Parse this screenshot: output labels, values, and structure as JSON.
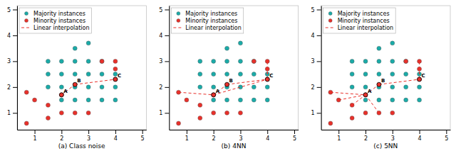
{
  "chart_data": [
    {
      "type": "scatter",
      "x_label": "(a) Class noise",
      "xlim": [
        0.35,
        5.15
      ],
      "ylim": [
        0.35,
        5.15
      ],
      "xticks": [
        1,
        2,
        3,
        4,
        5
      ],
      "yticks": [
        1,
        2,
        3,
        4,
        5
      ],
      "grid": false,
      "legend": "upper left",
      "series": [
        {
          "name": "Majority instances",
          "type": "scatter",
          "marker": "circle",
          "color": "#1aaba8",
          "x": [
            1.5,
            1.5,
            2.0,
            2.0,
            2.0,
            2.5,
            2.5,
            2.5,
            2.5,
            3.0,
            3.0,
            3.0,
            3.0,
            3.5,
            3.5,
            3.5,
            3.5,
            4.0,
            4.0,
            4.0,
            1.5,
            2.0,
            2.5,
            3.0
          ],
          "values": [
            2.5,
            3.0,
            3.0,
            2.5,
            2.0,
            3.5,
            3.0,
            2.5,
            2.0,
            3.7,
            3.0,
            2.5,
            2.0,
            3.0,
            2.5,
            2.0,
            1.5,
            2.5,
            2.0,
            1.5,
            2.0,
            1.5,
            1.5,
            1.5
          ]
        },
        {
          "name": "Minority instances",
          "type": "scatter",
          "marker": "circle",
          "color": "#e8302a",
          "x": [
            0.7,
            0.7,
            1.0,
            1.5,
            1.5,
            2.0,
            2.0,
            2.5,
            3.0,
            3.5,
            4.0,
            4.0,
            4.0
          ],
          "values": [
            1.8,
            0.6,
            1.5,
            1.3,
            0.8,
            1.7,
            1.0,
            1.0,
            1.0,
            3.0,
            3.0,
            2.7,
            2.3
          ]
        },
        {
          "name": "Linear interpolation",
          "type": "line",
          "line_style": "dashed",
          "color": "#e8302a",
          "x": [
            2.0,
            2.5,
            null,
            2.5,
            4.0
          ],
          "values": [
            1.7,
            2.1,
            null,
            2.1,
            2.3
          ]
        }
      ],
      "annotations": [
        {
          "text": "A",
          "x": 2.0,
          "y": 1.7
        },
        {
          "text": "B",
          "x": 2.5,
          "y": 2.1
        },
        {
          "text": "C",
          "x": 4.0,
          "y": 2.3
        }
      ]
    },
    {
      "type": "scatter",
      "x_label": "(b) 4NN",
      "xlim": [
        0.35,
        5.15
      ],
      "ylim": [
        0.35,
        5.15
      ],
      "xticks": [
        1,
        2,
        3,
        4,
        5
      ],
      "yticks": [
        1,
        2,
        3,
        4,
        5
      ],
      "grid": false,
      "legend": "upper left",
      "series": [
        {
          "name": "Majority instances",
          "type": "scatter",
          "marker": "circle",
          "color": "#1aaba8",
          "x": [
            1.5,
            1.5,
            2.0,
            2.0,
            2.0,
            2.5,
            2.5,
            2.5,
            2.5,
            3.0,
            3.0,
            3.0,
            3.0,
            3.5,
            3.5,
            3.5,
            3.5,
            4.0,
            4.0,
            4.0,
            1.5,
            2.0,
            2.5,
            3.0
          ],
          "values": [
            2.5,
            3.0,
            3.0,
            2.5,
            2.0,
            3.5,
            3.0,
            2.5,
            2.0,
            3.7,
            3.0,
            2.5,
            2.0,
            3.0,
            2.5,
            2.0,
            1.5,
            2.5,
            2.0,
            1.5,
            2.0,
            1.5,
            1.5,
            1.5
          ]
        },
        {
          "name": "Minority instances",
          "type": "scatter",
          "marker": "circle",
          "color": "#e8302a",
          "x": [
            0.7,
            0.7,
            1.0,
            1.5,
            1.5,
            2.0,
            2.0,
            2.5,
            3.0,
            3.5,
            4.0,
            4.0,
            4.0
          ],
          "values": [
            1.8,
            0.6,
            1.5,
            1.3,
            0.8,
            1.7,
            1.0,
            1.0,
            1.0,
            3.0,
            3.0,
            2.7,
            2.3
          ]
        },
        {
          "name": "Linear interpolation",
          "type": "line",
          "line_style": "dashed",
          "color": "#e8302a",
          "x": [
            0.7,
            2.0,
            null,
            2.0,
            2.5,
            null,
            2.0,
            4.0,
            null,
            2.5,
            4.0,
            null,
            4.0,
            4.0,
            null,
            4.0,
            4.0
          ],
          "values": [
            1.8,
            1.7,
            null,
            1.7,
            2.1,
            null,
            1.7,
            2.3,
            null,
            2.1,
            2.3,
            null,
            2.3,
            3.0,
            null,
            2.3,
            2.7
          ]
        }
      ],
      "annotations": [
        {
          "text": "A",
          "x": 2.0,
          "y": 1.7
        },
        {
          "text": "B",
          "x": 2.5,
          "y": 2.1
        },
        {
          "text": "C",
          "x": 4.0,
          "y": 2.3
        }
      ]
    },
    {
      "type": "scatter",
      "x_label": "(c) 5NN",
      "xlim": [
        0.35,
        5.15
      ],
      "ylim": [
        0.35,
        5.15
      ],
      "xticks": [
        1,
        2,
        3,
        4,
        5
      ],
      "yticks": [
        1,
        2,
        3,
        4,
        5
      ],
      "grid": false,
      "legend": "upper left",
      "series": [
        {
          "name": "Majority instances",
          "type": "scatter",
          "marker": "circle",
          "color": "#1aaba8",
          "x": [
            1.5,
            1.5,
            2.0,
            2.0,
            2.0,
            2.5,
            2.5,
            2.5,
            2.5,
            3.0,
            3.0,
            3.0,
            3.0,
            3.5,
            3.5,
            3.5,
            3.5,
            4.0,
            4.0,
            4.0,
            1.5,
            2.0,
            2.5,
            3.0
          ],
          "values": [
            2.5,
            3.0,
            3.0,
            2.5,
            2.0,
            3.5,
            3.0,
            2.5,
            2.0,
            3.7,
            3.0,
            2.5,
            2.0,
            3.0,
            2.5,
            2.0,
            1.5,
            2.5,
            2.0,
            1.5,
            2.0,
            1.5,
            1.5,
            1.5
          ]
        },
        {
          "name": "Minority instances",
          "type": "scatter",
          "marker": "circle",
          "color": "#e8302a",
          "x": [
            0.7,
            0.7,
            1.0,
            1.5,
            1.5,
            2.0,
            2.0,
            2.5,
            3.0,
            3.5,
            4.0,
            4.0,
            4.0
          ],
          "values": [
            1.8,
            0.6,
            1.5,
            1.3,
            0.8,
            1.7,
            1.0,
            1.0,
            1.0,
            3.0,
            3.0,
            2.7,
            2.3
          ]
        },
        {
          "name": "Linear interpolation",
          "type": "line",
          "line_style": "dashed",
          "color": "#e8302a",
          "x": [
            0.7,
            2.0,
            null,
            1.5,
            2.0,
            null,
            1.0,
            2.0,
            null,
            2.0,
            2.5,
            null,
            2.0,
            2.5,
            null,
            2.5,
            4.0,
            null,
            4.0,
            4.0,
            null,
            4.0,
            4.0
          ],
          "values": [
            1.8,
            1.7,
            null,
            1.3,
            1.7,
            null,
            1.5,
            1.7,
            null,
            1.7,
            2.1,
            null,
            1.7,
            1.0,
            null,
            2.1,
            2.3,
            null,
            2.3,
            3.0,
            null,
            2.3,
            2.7
          ]
        }
      ],
      "annotations": [
        {
          "text": "A",
          "x": 2.0,
          "y": 1.7
        },
        {
          "text": "B",
          "x": 2.5,
          "y": 2.1
        },
        {
          "text": "C",
          "x": 4.0,
          "y": 2.3
        }
      ]
    }
  ]
}
